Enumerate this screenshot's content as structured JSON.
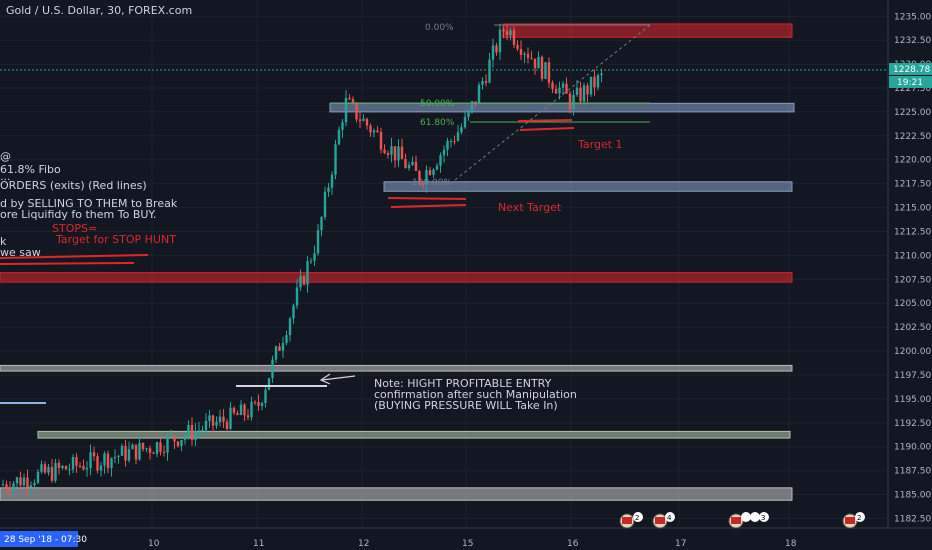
{
  "header": {
    "title": "Gold / U.S. Dollar, 30, FOREX.com"
  },
  "price_axis": {
    "ticks": [
      "1235.00",
      "1232.50",
      "1230.00",
      "1227.50",
      "1225.00",
      "1222.50",
      "1220.00",
      "1217.50",
      "1215.00",
      "1212.50",
      "1210.00",
      "1207.50",
      "1205.00",
      "1202.50",
      "1200.00",
      "1197.50",
      "1195.00",
      "1192.50",
      "1190.00",
      "1187.50",
      "1185.00",
      "1182.50"
    ],
    "current_price": "1228.78",
    "countdown": "19:21",
    "current_price_color": "#26a69a"
  },
  "time_axis": {
    "labels": [
      "10",
      "11",
      "12",
      "15",
      "16",
      "17",
      "18"
    ],
    "crosshair_label": "28 Sep '18 - 07:30"
  },
  "fib_labels": {
    "top": "0.00%",
    "mid": "50.00%",
    "low": "61.80%",
    "bottom": "100.00%"
  },
  "annotations": {
    "left_lines": [
      "@",
      "61.8% Fibo",
      "...",
      "ORDERS (exits) (Red lines)",
      "d by SELLING TO THEM to Break",
      "ore Liquifidy fo them To BUY.",
      "k",
      "we saw"
    ],
    "stops_line1": "STOPS=",
    "stops_line2": "Target for STOP HUNT",
    "note_lines": [
      "Note: HIGHT PROFITABLE ENTRY",
      "confirmation after such Manipulation",
      "(BUYING PRESSURE WILL Take In)"
    ],
    "target1": "Target 1",
    "next_target": "Next Target"
  },
  "events": [
    "2",
    "4",
    "3",
    "2"
  ],
  "colors": {
    "background": "#131722",
    "up": "#26a69a",
    "down": "#ef5350",
    "red_zone": "#e0262a",
    "blue_zone": "#8ca5cc",
    "green_zone": "#b8cfb0",
    "gray_zone": "#c8c8c8"
  },
  "chart_data": {
    "type": "candlestick",
    "title": "Gold / U.S. Dollar, 30, FOREX.com",
    "ylim": [
      1181.5,
      1236.7
    ],
    "x_ticks": [
      "10",
      "11",
      "12",
      "15",
      "16",
      "17",
      "18"
    ],
    "key_price_points": [
      {
        "t": "start",
        "price": 1186
      },
      {
        "t": "10",
        "price": 1190
      },
      {
        "t": "11",
        "price": 1194
      },
      {
        "t": "11 late",
        "price": 1212
      },
      {
        "t": "12",
        "price": 1226
      },
      {
        "t": "12 mid",
        "price": 1218
      },
      {
        "t": "15",
        "price": 1224
      },
      {
        "t": "15 high",
        "price": 1234
      },
      {
        "t": "16",
        "price": 1226
      },
      {
        "t": "last",
        "price": 1228.78
      }
    ],
    "zones": [
      {
        "color": "red",
        "from": 1232.8,
        "to": 1234.2
      },
      {
        "color": "blue",
        "from": 1225.0,
        "to": 1225.9
      },
      {
        "color": "blue",
        "from": 1216.7,
        "to": 1217.7
      },
      {
        "color": "red",
        "from": 1207.2,
        "to": 1208.2
      },
      {
        "color": "gray",
        "from": 1197.9,
        "to": 1198.5
      },
      {
        "color": "green",
        "from": 1190.9,
        "to": 1191.6
      },
      {
        "color": "gray",
        "from": 1184.4,
        "to": 1185.7
      }
    ],
    "grid": true
  }
}
